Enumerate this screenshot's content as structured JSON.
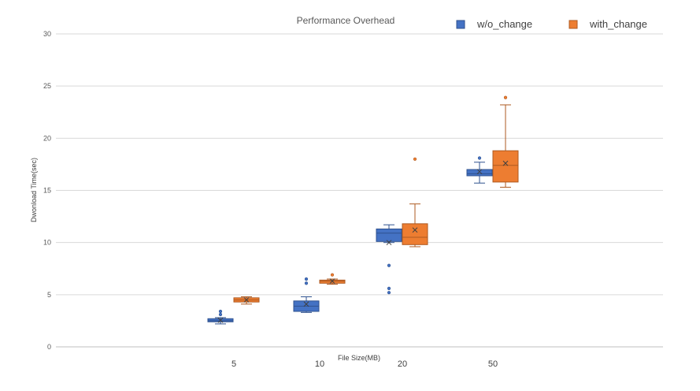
{
  "chart_data": {
    "type": "box",
    "title": "Performance Overhead",
    "xlabel": "File Size(MB)",
    "ylabel": "Dwonload Time(sec)",
    "ylim": [
      0,
      30
    ],
    "yticks": [
      0,
      5,
      10,
      15,
      20,
      25,
      30
    ],
    "grid": true,
    "legend_position": "top-right",
    "categories": [
      "5",
      "10",
      "20",
      "50"
    ],
    "series": [
      {
        "name": "w/o_change",
        "color": "#4472C4",
        "stroke": "#2F528F",
        "boxes": [
          {
            "category": "5",
            "min": 2.2,
            "q1": 2.4,
            "median": 2.5,
            "q3": 2.7,
            "max": 2.8,
            "mean": 2.55,
            "outliers": [
              3.1,
              3.4
            ]
          },
          {
            "category": "10",
            "min": 3.3,
            "q1": 3.4,
            "median": 3.9,
            "q3": 4.4,
            "max": 4.8,
            "mean": 4.1,
            "outliers": [
              6.1,
              6.5
            ]
          },
          {
            "category": "20",
            "min": 10.0,
            "q1": 10.1,
            "median": 10.9,
            "q3": 11.3,
            "max": 11.7,
            "mean": 10.0,
            "outliers": [
              5.2,
              5.6,
              7.8
            ]
          },
          {
            "category": "50",
            "min": 15.7,
            "q1": 16.4,
            "median": 16.6,
            "q3": 17.0,
            "max": 17.7,
            "mean": 16.8,
            "outliers": [
              18.1
            ]
          }
        ]
      },
      {
        "name": "with_change",
        "color": "#ED7D31",
        "stroke": "#AE5A21",
        "boxes": [
          {
            "category": "5",
            "min": 4.1,
            "q1": 4.3,
            "median": 4.5,
            "q3": 4.7,
            "max": 4.8,
            "mean": 4.5,
            "outliers": []
          },
          {
            "category": "10",
            "min": 6.0,
            "q1": 6.1,
            "median": 6.3,
            "q3": 6.4,
            "max": 6.5,
            "mean": 6.3,
            "outliers": [
              6.9
            ]
          },
          {
            "category": "20",
            "min": 9.6,
            "q1": 9.8,
            "median": 10.5,
            "q3": 11.8,
            "max": 13.7,
            "mean": 11.2,
            "outliers": [
              18.0
            ]
          },
          {
            "category": "50",
            "min": 15.3,
            "q1": 15.8,
            "median": 17.4,
            "q3": 18.8,
            "max": 23.2,
            "mean": 17.6,
            "outliers": [
              23.9
            ]
          }
        ]
      }
    ]
  }
}
